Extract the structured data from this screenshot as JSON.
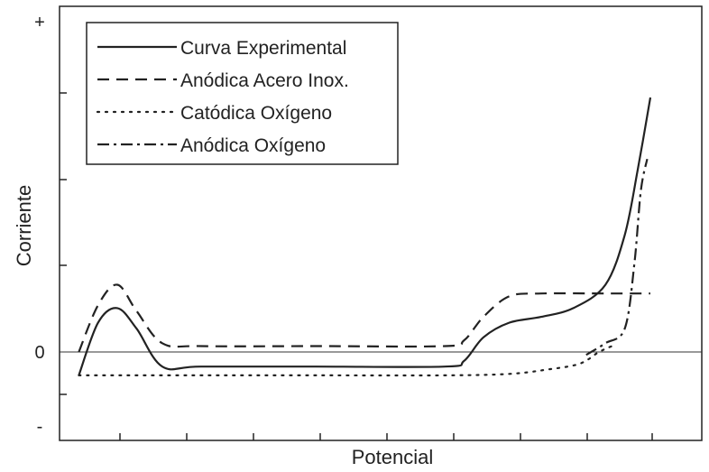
{
  "chart_data": {
    "type": "line",
    "title": "",
    "xlabel": "Potencial",
    "ylabel": "Corriente",
    "y_tick_labels": [
      {
        "value": 1.0,
        "text": "+"
      },
      {
        "value": 0.0,
        "text": "0"
      },
      {
        "value": -0.25,
        "text": "-"
      }
    ],
    "xlim": [
      0,
      10
    ],
    "ylim": [
      -0.25,
      1.0
    ],
    "grid": false,
    "legend_position": "top-left",
    "baseline_y": 0,
    "series": [
      {
        "name": "Curva Experimental",
        "style": "solid",
        "color": "#222222",
        "points": [
          [
            0.3,
            -0.08
          ],
          [
            0.6,
            0.1
          ],
          [
            0.9,
            0.15
          ],
          [
            1.2,
            0.08
          ],
          [
            1.6,
            -0.05
          ],
          [
            2.2,
            -0.05
          ],
          [
            4.0,
            -0.05
          ],
          [
            6.0,
            -0.05
          ],
          [
            6.3,
            -0.03
          ],
          [
            6.6,
            0.05
          ],
          [
            7.0,
            0.1
          ],
          [
            7.5,
            0.12
          ],
          [
            8.0,
            0.15
          ],
          [
            8.5,
            0.23
          ],
          [
            8.8,
            0.4
          ],
          [
            9.0,
            0.62
          ],
          [
            9.2,
            0.87
          ]
        ]
      },
      {
        "name": "Anódica Acero Inox.",
        "style": "dashed",
        "color": "#222222",
        "points": [
          [
            0.3,
            0.0
          ],
          [
            0.6,
            0.16
          ],
          [
            0.9,
            0.23
          ],
          [
            1.2,
            0.14
          ],
          [
            1.6,
            0.03
          ],
          [
            2.2,
            0.02
          ],
          [
            4.0,
            0.02
          ],
          [
            6.0,
            0.02
          ],
          [
            6.3,
            0.04
          ],
          [
            6.6,
            0.12
          ],
          [
            7.0,
            0.19
          ],
          [
            7.5,
            0.2
          ],
          [
            8.5,
            0.2
          ],
          [
            9.2,
            0.2
          ]
        ]
      },
      {
        "name": "Catódica Oxígeno",
        "style": "dotted",
        "color": "#222222",
        "points": [
          [
            0.3,
            -0.08
          ],
          [
            2.0,
            -0.08
          ],
          [
            4.0,
            -0.08
          ],
          [
            6.0,
            -0.08
          ],
          [
            7.0,
            -0.075
          ],
          [
            7.6,
            -0.06
          ],
          [
            8.1,
            -0.04
          ],
          [
            8.4,
            0.0
          ],
          [
            8.6,
            0.02
          ]
        ]
      },
      {
        "name": "Anódica Oxígeno",
        "style": "dashdot",
        "color": "#222222",
        "points": [
          [
            8.2,
            -0.01
          ],
          [
            8.5,
            0.03
          ],
          [
            8.8,
            0.08
          ],
          [
            8.95,
            0.3
          ],
          [
            9.05,
            0.55
          ],
          [
            9.15,
            0.66
          ]
        ]
      }
    ],
    "annotations": []
  }
}
